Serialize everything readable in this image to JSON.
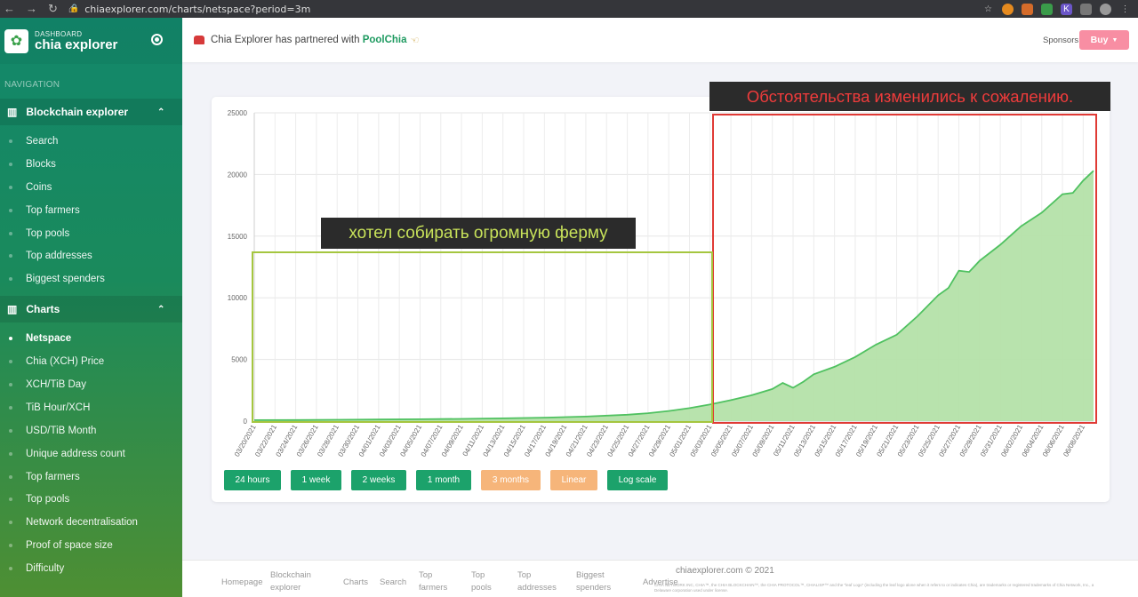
{
  "browser": {
    "url": "chiaexplorer.com/charts/netspace?period=3m",
    "nav_icons": [
      "back-icon",
      "forward-icon",
      "reload-icon",
      "home-icon"
    ]
  },
  "sidebar": {
    "brand_sup": "DASHBOARD",
    "brand_name": "chia explorer",
    "nav_heading": "NAVIGATION",
    "sections": [
      {
        "title": "Blockchain explorer",
        "items": [
          "Search",
          "Blocks",
          "Coins",
          "Top farmers",
          "Top pools",
          "Top addresses",
          "Biggest spenders"
        ]
      },
      {
        "title": "Charts",
        "items": [
          "Netspace",
          "Chia (XCH) Price",
          "XCH/TiB Day",
          "TiB Hour/XCH",
          "USD/TiB Month",
          "Unique address count",
          "Top farmers",
          "Top pools",
          "Network decentralisation",
          "Proof of space size",
          "Difficulty"
        ]
      }
    ],
    "active_item": "Netspace"
  },
  "topbar": {
    "message_prefix": "Chia Explorer has partnered with",
    "partner": "PoolChia",
    "sponsors_label": "Sponsors:",
    "buy_label": "Buy"
  },
  "annotations": {
    "red_label": "Обстоятельства изменились к сожалению.",
    "green_label": "хотел собирать огромную ферму"
  },
  "buttons": [
    {
      "label": "24 hours",
      "style": "green"
    },
    {
      "label": "1 week",
      "style": "green"
    },
    {
      "label": "2 weeks",
      "style": "green"
    },
    {
      "label": "1 month",
      "style": "green"
    },
    {
      "label": "3 months",
      "style": "orange"
    },
    {
      "label": "Linear",
      "style": "orange"
    },
    {
      "label": "Log scale",
      "style": "green"
    }
  ],
  "footer": {
    "links": [
      "Homepage",
      "Blockchain explorer",
      "Charts",
      "Search",
      "Top farmers",
      "Top pools",
      "Top addresses",
      "Biggest spenders",
      "Advertise"
    ],
    "copyright": "chiaexplorer.com © 2021",
    "legal": "CHIA NETWORK INC, CHIA™, the CHIA BLOCKCHAIN™, the CHIA PROTOCOL™, CHIALISP™ and the \"leaf Logo\" (including the leaf logo alone when it refers to or indicates Chia), are trademarks or registered trademarks of Chia Network, Inc., a Delaware corporation used under license."
  },
  "colors": {
    "accent": "#1ca26b",
    "series_fill": "#b4e2a9",
    "series_line": "#4fc160",
    "orange_button": "#f6b57a",
    "buy_button": "#f88ea3"
  },
  "chart_data": {
    "type": "area",
    "ylim": [
      0,
      25000
    ],
    "yticks": [
      0,
      5000,
      10000,
      15000,
      20000,
      25000
    ],
    "xlim": [
      "03/20/2021",
      "06/09/2021"
    ],
    "xticks": [
      "03/20/2021",
      "03/22/2021",
      "03/24/2021",
      "03/26/2021",
      "03/28/2021",
      "03/30/2021",
      "04/01/2021",
      "04/03/2021",
      "04/05/2021",
      "04/07/2021",
      "04/09/2021",
      "04/11/2021",
      "04/13/2021",
      "04/15/2021",
      "04/17/2021",
      "04/19/2021",
      "04/21/2021",
      "04/23/2021",
      "04/25/2021",
      "04/27/2021",
      "04/29/2021",
      "05/01/2021",
      "05/03/2021",
      "05/05/2021",
      "05/07/2021",
      "05/09/2021",
      "05/11/2021",
      "05/13/2021",
      "05/15/2021",
      "05/17/2021",
      "05/19/2021",
      "05/21/2021",
      "05/23/2021",
      "05/25/2021",
      "05/27/2021",
      "05/29/2021",
      "05/31/2021",
      "06/02/2021",
      "06/04/2021",
      "06/06/2021",
      "06/08/2021"
    ],
    "grid": true,
    "points": [
      [
        "03/20/2021",
        80
      ],
      [
        "03/24/2021",
        90
      ],
      [
        "03/28/2021",
        110
      ],
      [
        "04/01/2021",
        130
      ],
      [
        "04/05/2021",
        150
      ],
      [
        "04/09/2021",
        180
      ],
      [
        "04/13/2021",
        220
      ],
      [
        "04/17/2021",
        280
      ],
      [
        "04/21/2021",
        370
      ],
      [
        "04/25/2021",
        520
      ],
      [
        "04/27/2021",
        640
      ],
      [
        "04/29/2021",
        820
      ],
      [
        "05/01/2021",
        1050
      ],
      [
        "05/03/2021",
        1350
      ],
      [
        "05/05/2021",
        1700
      ],
      [
        "05/07/2021",
        2100
      ],
      [
        "05/09/2021",
        2600
      ],
      [
        "05/10/2021",
        3100
      ],
      [
        "05/11/2021",
        2700
      ],
      [
        "05/12/2021",
        3200
      ],
      [
        "05/13/2021",
        3800
      ],
      [
        "05/15/2021",
        4400
      ],
      [
        "05/17/2021",
        5200
      ],
      [
        "05/19/2021",
        6200
      ],
      [
        "05/21/2021",
        7000
      ],
      [
        "05/23/2021",
        8500
      ],
      [
        "05/25/2021",
        10200
      ],
      [
        "05/26/2021",
        10800
      ],
      [
        "05/27/2021",
        12200
      ],
      [
        "05/28/2021",
        12100
      ],
      [
        "05/29/2021",
        13000
      ],
      [
        "05/31/2021",
        14300
      ],
      [
        "06/02/2021",
        15800
      ],
      [
        "06/04/2021",
        16900
      ],
      [
        "06/06/2021",
        18400
      ],
      [
        "06/07/2021",
        18500
      ],
      [
        "06/08/2021",
        19500
      ],
      [
        "06/09/2021",
        20300
      ]
    ]
  }
}
